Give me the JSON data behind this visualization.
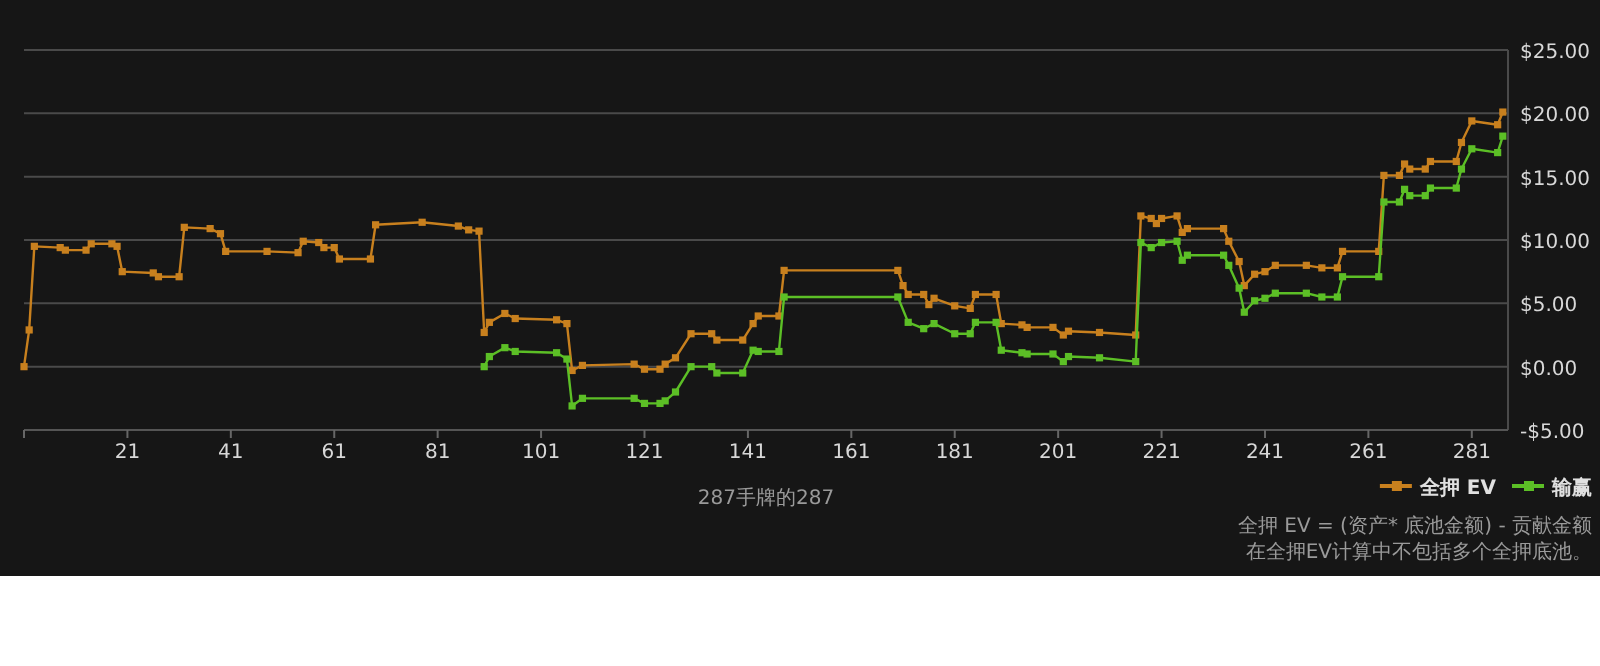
{
  "chart_data": {
    "type": "line",
    "xlabel": "287手牌的287",
    "xlim": [
      1,
      288
    ],
    "ylim": [
      -5,
      25
    ],
    "xticks": [
      {
        "value": 1,
        "label": null
      },
      21,
      41,
      61,
      81,
      101,
      121,
      141,
      161,
      181,
      201,
      221,
      241,
      261,
      281
    ],
    "yticks": [
      {
        "value": -5,
        "label": "-$5.00"
      },
      {
        "value": 0,
        "label": "$0.00"
      },
      {
        "value": 5,
        "label": "$5.00"
      },
      {
        "value": 10,
        "label": "$10.00"
      },
      {
        "value": 15,
        "label": "$15.00"
      },
      {
        "value": 20,
        "label": "$20.00"
      },
      {
        "value": 25,
        "label": "$25.00"
      }
    ],
    "grid": "y",
    "legend": "bottom right",
    "marker": "square",
    "line_style": "solid",
    "annotations": [
      "全押 EV = (资产* 底池金额) - 贡献金额",
      "在全押EV计算中不包括多个全押底池。"
    ],
    "series": [
      {
        "name": "全押 EV",
        "color": "#c8801e",
        "x": [
          1,
          2,
          3,
          8,
          9,
          13,
          14,
          18,
          19,
          20,
          26,
          27,
          31,
          32,
          37,
          39,
          40,
          48,
          54,
          55,
          58,
          59,
          61,
          62,
          68,
          69,
          78,
          85,
          87,
          89,
          90,
          91,
          94,
          96,
          104,
          106,
          107,
          109,
          119,
          121,
          124,
          125,
          127,
          130,
          134,
          135,
          140,
          142,
          143,
          147,
          148,
          170,
          171,
          172,
          175,
          176,
          177,
          181,
          184,
          185,
          189,
          190,
          194,
          195,
          200,
          202,
          203,
          209,
          216,
          217,
          219,
          220,
          221,
          224,
          225,
          226,
          233,
          234,
          236,
          237,
          239,
          241,
          243,
          249,
          252,
          255,
          256,
          263,
          264,
          267,
          268,
          269,
          272,
          273,
          278,
          279,
          281,
          286,
          287
        ],
        "values": [
          0.0,
          2.9,
          9.5,
          9.4,
          9.2,
          9.2,
          9.7,
          9.7,
          9.5,
          7.5,
          7.4,
          7.1,
          7.1,
          11.0,
          10.9,
          10.5,
          9.1,
          9.1,
          9.0,
          9.9,
          9.8,
          9.4,
          9.4,
          8.5,
          8.5,
          11.2,
          11.4,
          11.1,
          10.8,
          10.7,
          2.7,
          3.5,
          4.2,
          3.8,
          3.7,
          3.4,
          -0.3,
          0.1,
          0.2,
          -0.2,
          -0.2,
          0.2,
          0.7,
          2.6,
          2.6,
          2.1,
          2.1,
          3.4,
          4.0,
          4.0,
          7.6,
          7.6,
          6.4,
          5.7,
          5.7,
          4.9,
          5.4,
          4.8,
          4.6,
          5.7,
          5.7,
          3.4,
          3.3,
          3.1,
          3.1,
          2.5,
          2.8,
          2.7,
          2.5,
          11.9,
          11.7,
          11.3,
          11.7,
          11.9,
          10.6,
          10.9,
          10.9,
          9.9,
          8.3,
          6.4,
          7.3,
          7.5,
          8.0,
          8.0,
          7.8,
          7.8,
          9.1,
          9.1,
          15.1,
          15.1,
          16.0,
          15.6,
          15.6,
          16.2,
          16.2,
          17.7,
          19.4,
          19.1,
          20.1
        ]
      },
      {
        "name": "输赢",
        "color": "#5cbf26",
        "x": [
          90,
          91,
          94,
          96,
          104,
          106,
          107,
          109,
          119,
          121,
          124,
          125,
          127,
          130,
          134,
          135,
          140,
          142,
          143,
          147,
          148,
          170,
          172,
          175,
          177,
          181,
          184,
          185,
          189,
          190,
          194,
          195,
          200,
          202,
          203,
          209,
          216,
          217,
          219,
          221,
          224,
          225,
          226,
          233,
          234,
          236,
          237,
          239,
          241,
          243,
          249,
          252,
          255,
          256,
          263,
          264,
          267,
          268,
          269,
          272,
          273,
          278,
          279,
          281,
          286,
          287
        ],
        "values": [
          0.0,
          0.8,
          1.5,
          1.2,
          1.1,
          0.6,
          -3.1,
          -2.5,
          -2.5,
          -2.9,
          -2.9,
          -2.7,
          -2.0,
          0.0,
          0.0,
          -0.5,
          -0.5,
          1.3,
          1.2,
          1.2,
          5.5,
          5.5,
          3.5,
          3.0,
          3.4,
          2.6,
          2.6,
          3.5,
          3.5,
          1.3,
          1.1,
          1.0,
          1.0,
          0.4,
          0.8,
          0.7,
          0.4,
          9.8,
          9.4,
          9.8,
          9.9,
          8.4,
          8.8,
          8.8,
          8.0,
          6.2,
          4.3,
          5.2,
          5.4,
          5.8,
          5.8,
          5.5,
          5.5,
          7.1,
          7.1,
          13.0,
          13.0,
          14.0,
          13.5,
          13.5,
          14.1,
          14.1,
          15.6,
          17.2,
          16.9,
          18.2
        ]
      }
    ]
  }
}
